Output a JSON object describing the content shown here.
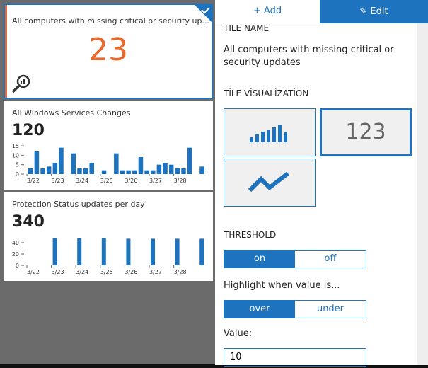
{
  "tiles": [
    {
      "title": "All computers with missing critical or security up...",
      "value": "23"
    },
    {
      "title": "All Windows Services Changes",
      "value": "120",
      "chart": {
        "type": "bar",
        "x_labels": [
          "3/22",
          "3/23",
          "3/24",
          "3/25",
          "3/26",
          "3/27",
          "3/28"
        ],
        "values": [
          3,
          12,
          3,
          4,
          6,
          14,
          0,
          11,
          3,
          3,
          6,
          0,
          2,
          0,
          11,
          2,
          2,
          2,
          9,
          2,
          2,
          5,
          6,
          5,
          3,
          3,
          14,
          0,
          4
        ],
        "ylim": [
          0,
          15
        ],
        "yticks": [
          0,
          5,
          10,
          15
        ],
        "color": "#1e73be"
      }
    },
    {
      "title": "Protection Status updates per day",
      "value": "340",
      "chart": {
        "type": "bar",
        "x_labels": [
          "3/22",
          "3/23",
          "3/24",
          "3/25",
          "3/26",
          "3/27",
          "3/28"
        ],
        "values": [
          0,
          48,
          48,
          48,
          47,
          47,
          47,
          47
        ],
        "ylim": [
          0,
          50
        ],
        "yticks": [
          0,
          20,
          40
        ],
        "color": "#1e73be"
      }
    }
  ],
  "panel": {
    "tabs": [
      "Add",
      "Edit"
    ],
    "tile_name_label": "TILE NAME",
    "tile_name": "All computers with missing critical or security updates",
    "visualization_label": "TİLE VİSUALİZATİON",
    "visualization_number": "123",
    "threshold_label": "THRESHOLD",
    "threshold_options": [
      "on",
      "off"
    ],
    "highlight_label": "Highlight when value is...",
    "highlight_options": [
      "over",
      "under"
    ],
    "value_label": "Value:",
    "value": "10"
  }
}
